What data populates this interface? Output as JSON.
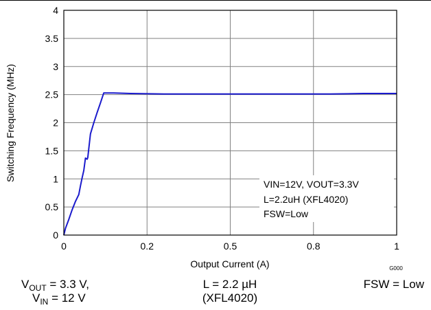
{
  "chart_data": {
    "type": "line",
    "xlabel": "Output Current (A)",
    "ylabel": "Switching Frequency (MHz)",
    "xlim": [
      0,
      1
    ],
    "ylim": [
      0,
      4
    ],
    "x_ticks": [
      "0",
      "0.2",
      "0.5",
      "0.8",
      "1"
    ],
    "y_ticks": [
      "0",
      "0.5",
      "1",
      "1.5",
      "2",
      "2.5",
      "3",
      "3.5",
      "4"
    ],
    "grid": true,
    "series": [
      {
        "color": "#1a1acc",
        "x": [
          0,
          0.005,
          0.015,
          0.025,
          0.035,
          0.045,
          0.05,
          0.055,
          0.06,
          0.065,
          0.07,
          0.072,
          0.08,
          0.09,
          0.1,
          0.11,
          0.12,
          0.15,
          0.2,
          0.3,
          0.4,
          0.5,
          0.6,
          0.7,
          0.8,
          0.9,
          1.0
        ],
        "y": [
          0,
          0.12,
          0.28,
          0.45,
          0.6,
          0.72,
          0.88,
          1.02,
          1.15,
          1.37,
          1.35,
          1.38,
          1.8,
          2.0,
          2.18,
          2.35,
          2.53,
          2.53,
          2.52,
          2.51,
          2.51,
          2.51,
          2.51,
          2.51,
          2.51,
          2.52,
          2.52
        ]
      }
    ],
    "annotation": [
      "VIN=12V, VOUT=3.3V",
      "L=2.2uH (XFL4020)",
      "FSW=Low"
    ],
    "figure_id": "G000"
  },
  "caption": {
    "left": {
      "line1_prefix": "V",
      "line1_sub": "OUT",
      "line1_suffix": " = 3.3 V,",
      "line2_prefix": "V",
      "line2_sub": "IN",
      "line2_suffix": " = 12 V"
    },
    "center": {
      "line1": "L = 2.2 µH",
      "line2": "(XFL4020)"
    },
    "right": "FSW = Low"
  }
}
